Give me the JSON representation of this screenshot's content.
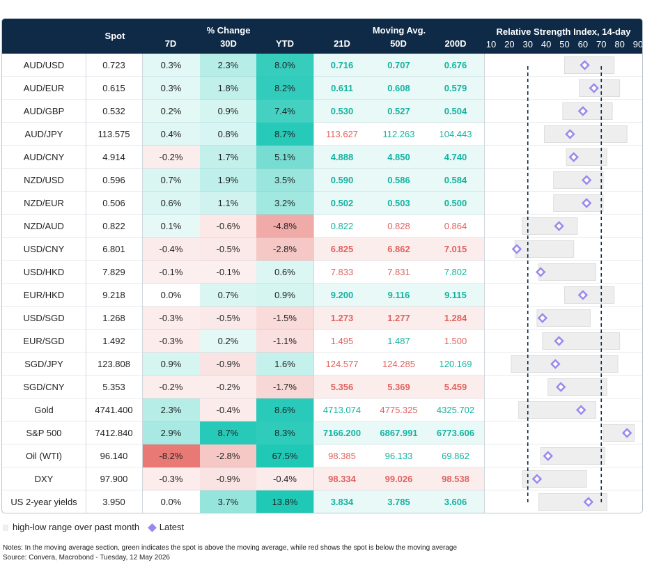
{
  "chart_data": {
    "type": "table",
    "headers": {
      "spot": "Spot",
      "pct_change_group": "% Change",
      "moving_avg_group": "Moving Avg.",
      "rsi_title": "Relative Strength Index, 14-day",
      "columns": [
        "7D",
        "30D",
        "YTD",
        "21D",
        "50D",
        "200D"
      ],
      "rsi_ticks": [
        "10",
        "20",
        "30",
        "40",
        "50",
        "60",
        "70",
        "80",
        "90"
      ]
    },
    "rsi_axis": {
      "min": 10,
      "max": 90,
      "oversold_line": 30,
      "overbought_line": 70
    },
    "rows": [
      {
        "name": "AUD/USD",
        "spot": "0.723",
        "d7": "0.3%",
        "d30": "2.3%",
        "ytd": "8.0%",
        "ma21": "0.716",
        "ma50": "0.707",
        "ma200": "0.676",
        "rsi": 61,
        "rsi_low": 50,
        "rsi_high": 77
      },
      {
        "name": "AUD/EUR",
        "spot": "0.615",
        "d7": "0.3%",
        "d30": "1.8%",
        "ytd": "8.2%",
        "ma21": "0.611",
        "ma50": "0.608",
        "ma200": "0.579",
        "rsi": 66,
        "rsi_low": 58,
        "rsi_high": 80
      },
      {
        "name": "AUD/GBP",
        "spot": "0.532",
        "d7": "0.2%",
        "d30": "0.9%",
        "ytd": "7.4%",
        "ma21": "0.530",
        "ma50": "0.527",
        "ma200": "0.504",
        "rsi": 60,
        "rsi_low": 49,
        "rsi_high": 76
      },
      {
        "name": "AUD/JPY",
        "spot": "113.575",
        "d7": "0.4%",
        "d30": "0.8%",
        "ytd": "8.7%",
        "ma21": "113.627",
        "ma50": "112.263",
        "ma200": "104.443",
        "rsi": 53,
        "rsi_low": 39,
        "rsi_high": 84
      },
      {
        "name": "AUD/CNY",
        "spot": "4.914",
        "d7": "-0.2%",
        "d30": "1.7%",
        "ytd": "5.1%",
        "ma21": "4.888",
        "ma50": "4.850",
        "ma200": "4.740",
        "rsi": 55,
        "rsi_low": 51,
        "rsi_high": 73
      },
      {
        "name": "NZD/USD",
        "spot": "0.596",
        "d7": "0.7%",
        "d30": "1.9%",
        "ytd": "3.5%",
        "ma21": "0.590",
        "ma50": "0.586",
        "ma200": "0.584",
        "rsi": 62,
        "rsi_low": 44,
        "rsi_high": 71
      },
      {
        "name": "NZD/EUR",
        "spot": "0.506",
        "d7": "0.6%",
        "d30": "1.1%",
        "ytd": "3.2%",
        "ma21": "0.502",
        "ma50": "0.503",
        "ma200": "0.500",
        "rsi": 62,
        "rsi_low": 44,
        "rsi_high": 71
      },
      {
        "name": "NZD/AUD",
        "spot": "0.822",
        "d7": "0.1%",
        "d30": "-0.6%",
        "ytd": "-4.8%",
        "ma21": "0.822",
        "ma50": "0.828",
        "ma200": "0.864",
        "rsi": 47,
        "rsi_low": 27,
        "rsi_high": 57
      },
      {
        "name": "USD/CNY",
        "spot": "6.801",
        "d7": "-0.4%",
        "d30": "-0.5%",
        "ytd": "-2.8%",
        "ma21": "6.825",
        "ma50": "6.862",
        "ma200": "7.015",
        "rsi": 24,
        "rsi_low": 23,
        "rsi_high": 55
      },
      {
        "name": "USD/HKD",
        "spot": "7.829",
        "d7": "-0.1%",
        "d30": "-0.1%",
        "ytd": "0.6%",
        "ma21": "7.833",
        "ma50": "7.831",
        "ma200": "7.802",
        "rsi": 37,
        "rsi_low": 36,
        "rsi_high": 67
      },
      {
        "name": "EUR/HKD",
        "spot": "9.218",
        "d7": "0.0%",
        "d30": "0.7%",
        "ytd": "0.9%",
        "ma21": "9.200",
        "ma50": "9.116",
        "ma200": "9.115",
        "rsi": 60,
        "rsi_low": 50,
        "rsi_high": 77
      },
      {
        "name": "USD/SGD",
        "spot": "1.268",
        "d7": "-0.3%",
        "d30": "-0.5%",
        "ytd": "-1.5%",
        "ma21": "1.273",
        "ma50": "1.277",
        "ma200": "1.284",
        "rsi": 38,
        "rsi_low": 35,
        "rsi_high": 64
      },
      {
        "name": "EUR/SGD",
        "spot": "1.492",
        "d7": "-0.3%",
        "d30": "0.2%",
        "ytd": "-1.1%",
        "ma21": "1.495",
        "ma50": "1.487",
        "ma200": "1.500",
        "rsi": 47,
        "rsi_low": 38,
        "rsi_high": 80
      },
      {
        "name": "SGD/JPY",
        "spot": "123.808",
        "d7": "0.9%",
        "d30": "-0.9%",
        "ytd": "1.6%",
        "ma21": "124.577",
        "ma50": "124.285",
        "ma200": "120.169",
        "rsi": 45,
        "rsi_low": 21,
        "rsi_high": 79
      },
      {
        "name": "SGD/CNY",
        "spot": "5.353",
        "d7": "-0.2%",
        "d30": "-0.2%",
        "ytd": "-1.7%",
        "ma21": "5.356",
        "ma50": "5.369",
        "ma200": "5.459",
        "rsi": 48,
        "rsi_low": 41,
        "rsi_high": 73
      },
      {
        "name": "Gold",
        "spot": "4741.400",
        "d7": "2.3%",
        "d30": "-0.4%",
        "ytd": "8.6%",
        "ma21": "4713.074",
        "ma50": "4775.325",
        "ma200": "4325.702",
        "rsi": 59,
        "rsi_low": 25,
        "rsi_high": 67
      },
      {
        "name": "S&P 500",
        "spot": "7412.840",
        "d7": "2.9%",
        "d30": "8.7%",
        "ytd": "8.3%",
        "ma21": "7166.200",
        "ma50": "6867.991",
        "ma200": "6773.606",
        "rsi": 84,
        "rsi_low": 71,
        "rsi_high": 88
      },
      {
        "name": "Oil (WTI)",
        "spot": "96.140",
        "d7": "-8.2%",
        "d30": "-2.8%",
        "ytd": "67.5%",
        "ma21": "98.385",
        "ma50": "96.133",
        "ma200": "69.862",
        "rsi": 41,
        "rsi_low": 37,
        "rsi_high": 72
      },
      {
        "name": "DXY",
        "spot": "97.900",
        "d7": "-0.3%",
        "d30": "-0.9%",
        "ytd": "-0.4%",
        "ma21": "98.334",
        "ma50": "99.026",
        "ma200": "98.538",
        "rsi": 35,
        "rsi_low": 27,
        "rsi_high": 62
      },
      {
        "name": "US 2-year yields",
        "spot": "3.950",
        "d7": "0.0%",
        "d30": "3.7%",
        "ytd": "13.8%",
        "ma21": "3.834",
        "ma50": "3.785",
        "ma200": "3.606",
        "rsi": 63,
        "rsi_low": 36,
        "rsi_high": 73
      }
    ]
  },
  "legend": {
    "range_label": "high-low range over past month",
    "latest_label": "Latest"
  },
  "notes": "Notes: In the moving average section, green indicates the spot is above the moving average, while red shows the spot is below the moving average",
  "source": "Source: Convera, Macrobond - Tuesday, 12 May 2026",
  "colors": {
    "header_bg": "#0e2a47",
    "positive": "#1fbfa8",
    "negative": "#e0625e",
    "range_bar": "#eeeeee",
    "marker": "#9a88f0"
  }
}
